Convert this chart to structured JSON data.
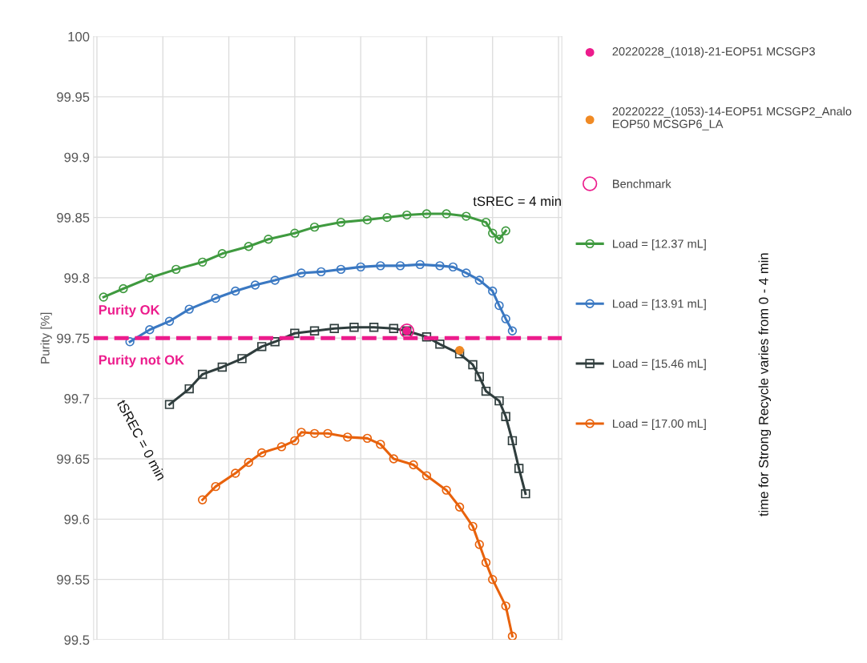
{
  "chart_data": {
    "type": "line",
    "ylabel": "Purity [%]",
    "categories": [
      null,
      null,
      null,
      null,
      null,
      null,
      null,
      null,
      null,
      null,
      null,
      null,
      null,
      null,
      null,
      null,
      null,
      null,
      null,
      null,
      null,
      null,
      null,
      null,
      null,
      null,
      null,
      null,
      null,
      null,
      null,
      null,
      null,
      null,
      null,
      null,
      null,
      null,
      null,
      null,
      null,
      null,
      null,
      null,
      null,
      null,
      null,
      null,
      null,
      null,
      null,
      null,
      null,
      null,
      null,
      null,
      null,
      null,
      null,
      null,
      null,
      null,
      null,
      null,
      null,
      null,
      null,
      null,
      null,
      null,
      null
    ],
    "ylim": [
      99.5,
      100
    ],
    "yticks": [
      {
        "value": 99.5,
        "label": "99.5"
      },
      {
        "value": 99.55,
        "label": "99.55"
      },
      {
        "value": 99.6,
        "label": "99.6"
      },
      {
        "value": 99.65,
        "label": "99.65"
      },
      {
        "value": 99.7,
        "label": "99.7"
      },
      {
        "value": 99.75,
        "label": "99.75"
      },
      {
        "value": 99.8,
        "label": "99.8"
      },
      {
        "value": 99.85,
        "label": "99.85"
      },
      {
        "value": 99.9,
        "label": "99.9"
      },
      {
        "value": 99.95,
        "label": "99.95"
      },
      {
        "value": 100,
        "label": "100"
      }
    ],
    "grid": true,
    "legend": "right",
    "ref_lines": [
      {
        "axis": "y",
        "value": 99.75,
        "color": "#ec1c8c",
        "line_style": "dashed"
      }
    ],
    "annotations": [
      "tSREC = 4 min",
      "Purity OK",
      "Purity not OK",
      "tSREC = 0 min",
      "time for Strong Recycle varies from 0 - 4 min"
    ],
    "series": [
      {
        "name": "20220228_(1018)-21-EOP51 MCSGP3",
        "type": "scatter",
        "marker": "circle",
        "color": "#ec1c8c",
        "values": [
          null,
          null,
          null,
          null,
          null,
          null,
          null,
          null,
          null,
          null,
          null,
          null,
          null,
          null,
          null,
          null,
          null,
          null,
          null,
          null,
          null,
          null,
          null,
          null,
          null,
          null,
          null,
          null,
          null,
          null,
          null,
          null,
          null,
          null,
          null,
          null,
          null,
          null,
          null,
          null,
          null,
          null,
          null,
          null,
          null,
          null,
          null,
          99.756,
          null,
          null,
          null,
          null,
          null,
          null,
          null,
          null,
          null,
          null,
          null,
          null,
          null,
          null,
          null,
          null,
          null,
          null,
          null,
          null,
          null,
          null,
          null
        ]
      },
      {
        "name": "20220222_(1053)-14-EOP51 MCSGP2_Analo\nEOP50 MCSGP6_LA",
        "type": "scatter",
        "marker": "circle",
        "color": "#f08a24",
        "values": [
          null,
          null,
          null,
          null,
          null,
          null,
          null,
          null,
          null,
          null,
          null,
          null,
          null,
          null,
          null,
          null,
          null,
          null,
          null,
          null,
          null,
          null,
          null,
          null,
          null,
          null,
          null,
          null,
          null,
          null,
          null,
          null,
          null,
          null,
          null,
          null,
          null,
          null,
          null,
          null,
          null,
          null,
          null,
          null,
          null,
          null,
          null,
          null,
          null,
          null,
          null,
          null,
          null,
          null,
          null,
          99.74,
          null,
          null,
          null,
          null,
          null,
          null,
          null,
          null,
          null,
          null,
          null,
          null,
          null,
          null,
          null
        ]
      },
      {
        "name": "Benchmark",
        "type": "line",
        "marker": "circle",
        "color": "#ec1c8c",
        "values": [
          null,
          null,
          null,
          null,
          null,
          null,
          null,
          null,
          null,
          null,
          null,
          null,
          null,
          null,
          null,
          null,
          null,
          null,
          null,
          null,
          null,
          null,
          null,
          null,
          null,
          null,
          null,
          null,
          null,
          null,
          null,
          null,
          null,
          null,
          null,
          null,
          null,
          null,
          null,
          null,
          null,
          null,
          null,
          null,
          null,
          null,
          null,
          99.756,
          null,
          null,
          null,
          null,
          null,
          null,
          null,
          null,
          null,
          null,
          null,
          null,
          null,
          null,
          null,
          null,
          null,
          null,
          null,
          null,
          null,
          null,
          null
        ]
      },
      {
        "name": "Load = [12.37 mL]",
        "type": "line",
        "marker": "circle",
        "color": "#3f9a3f",
        "values": [
          null,
          99.784,
          null,
          null,
          99.791,
          null,
          null,
          null,
          99.8,
          null,
          null,
          null,
          99.807,
          null,
          null,
          null,
          99.813,
          null,
          null,
          99.82,
          null,
          null,
          null,
          99.826,
          null,
          null,
          99.832,
          null,
          null,
          null,
          99.837,
          null,
          null,
          99.842,
          null,
          null,
          null,
          99.846,
          null,
          null,
          null,
          99.848,
          null,
          null,
          99.85,
          null,
          null,
          99.852,
          null,
          null,
          99.853,
          null,
          null,
          99.853,
          null,
          null,
          99.851,
          null,
          null,
          99.846,
          99.837,
          99.832,
          99.839,
          null,
          null,
          null,
          null,
          null,
          null,
          null,
          null
        ]
      },
      {
        "name": "Load = [13.91 mL]",
        "type": "line",
        "marker": "circle",
        "color": "#3a78c2",
        "values": [
          null,
          null,
          null,
          null,
          null,
          99.747,
          null,
          null,
          99.757,
          null,
          null,
          99.764,
          null,
          null,
          99.774,
          null,
          null,
          null,
          99.783,
          null,
          null,
          99.789,
          null,
          null,
          99.794,
          null,
          null,
          99.798,
          null,
          null,
          null,
          99.804,
          null,
          null,
          99.805,
          null,
          null,
          99.807,
          null,
          null,
          99.809,
          null,
          null,
          99.81,
          null,
          null,
          99.81,
          null,
          null,
          99.811,
          null,
          null,
          99.81,
          null,
          99.809,
          null,
          99.804,
          null,
          99.798,
          null,
          99.789,
          99.777,
          99.766,
          99.756,
          null,
          null,
          null,
          null,
          null,
          null,
          null
        ]
      },
      {
        "name": "Load = [15.46 mL]",
        "type": "line",
        "marker": "square",
        "color": "#2f3d3d",
        "values": [
          null,
          null,
          null,
          null,
          null,
          null,
          null,
          null,
          null,
          null,
          null,
          99.695,
          null,
          null,
          99.708,
          null,
          99.72,
          null,
          null,
          99.726,
          null,
          null,
          99.733,
          null,
          null,
          99.743,
          null,
          99.747,
          null,
          null,
          99.754,
          null,
          null,
          99.756,
          null,
          null,
          99.758,
          null,
          null,
          99.759,
          null,
          null,
          99.759,
          null,
          null,
          99.758,
          null,
          99.756,
          null,
          null,
          99.751,
          null,
          99.745,
          null,
          null,
          99.737,
          null,
          99.728,
          99.718,
          99.706,
          null,
          99.698,
          99.685,
          99.665,
          99.642,
          99.621,
          null,
          null,
          null,
          null,
          null
        ]
      },
      {
        "name": "Load = [17.00 mL]",
        "type": "line",
        "marker": "circle",
        "color": "#e8620c",
        "values": [
          null,
          null,
          null,
          null,
          null,
          null,
          null,
          null,
          null,
          null,
          null,
          null,
          null,
          null,
          null,
          null,
          99.616,
          null,
          99.627,
          null,
          null,
          99.638,
          null,
          99.647,
          null,
          99.655,
          null,
          null,
          99.66,
          null,
          99.665,
          99.672,
          null,
          99.671,
          null,
          99.671,
          null,
          null,
          99.668,
          null,
          null,
          99.667,
          null,
          99.662,
          null,
          99.65,
          null,
          null,
          99.645,
          null,
          99.636,
          null,
          null,
          99.624,
          null,
          99.61,
          null,
          99.594,
          99.579,
          99.564,
          99.55,
          null,
          99.528,
          99.503,
          null,
          null,
          null,
          null,
          null,
          null,
          null
        ]
      }
    ]
  }
}
